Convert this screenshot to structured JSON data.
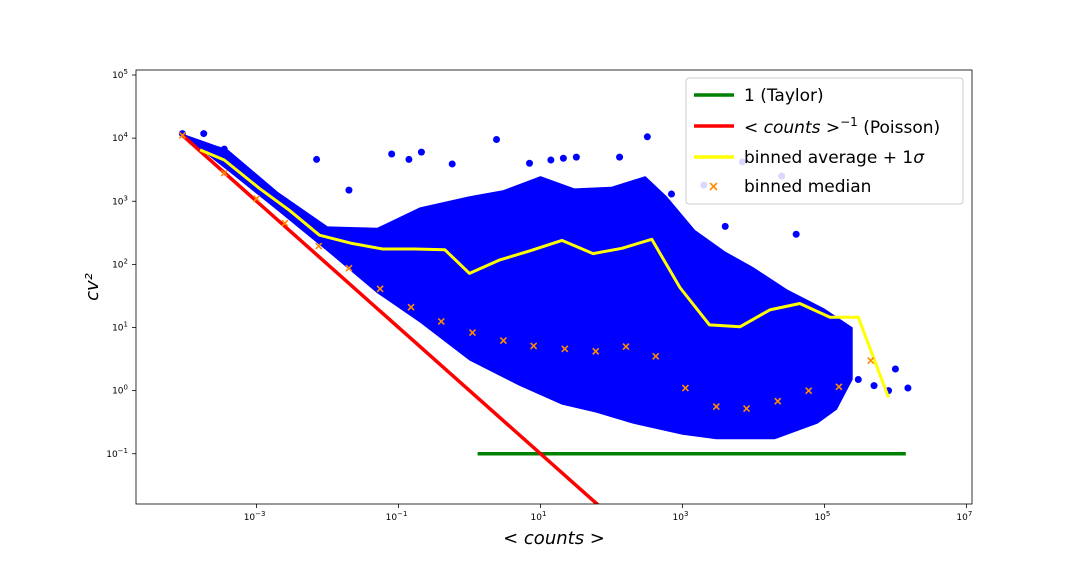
{
  "chart_data": {
    "type": "scatter",
    "title": "",
    "xlabel": "< counts >",
    "ylabel": "cv²",
    "xscale": "log",
    "yscale": "log",
    "xlim": [
      2e-05,
      12000000
    ],
    "ylim": [
      0.016,
      120000
    ],
    "xticks": [
      {
        "value": 0.001,
        "base": "10",
        "exp": "−3"
      },
      {
        "value": 0.1,
        "base": "10",
        "exp": "−1"
      },
      {
        "value": 10,
        "base": "10",
        "exp": "1"
      },
      {
        "value": 1000,
        "base": "10",
        "exp": "3"
      },
      {
        "value": 100000,
        "base": "10",
        "exp": "5"
      },
      {
        "value": 10000000,
        "base": "10",
        "exp": "7"
      }
    ],
    "yticks": [
      {
        "value": 0.1,
        "base": "10",
        "exp": "−1"
      },
      {
        "value": 1,
        "base": "10",
        "exp": "0"
      },
      {
        "value": 10,
        "base": "10",
        "exp": "1"
      },
      {
        "value": 100,
        "base": "10",
        "exp": "2"
      },
      {
        "value": 1000,
        "base": "10",
        "exp": "3"
      },
      {
        "value": 10000,
        "base": "10",
        "exp": "4"
      },
      {
        "value": 100000,
        "base": "10",
        "exp": "5"
      }
    ],
    "grid": false,
    "legend_position": "top-right",
    "colors": {
      "scatter": "#0000ff",
      "taylor": "#008000",
      "poisson": "#ff0000",
      "binned_average": "#ffff00",
      "binned_median": "#ff8c00"
    },
    "legend": [
      {
        "key": "taylor",
        "label": "1 (Taylor)"
      },
      {
        "key": "poisson",
        "label_math": "< counts >",
        "label_sup": "−1",
        "label_suffix": " (Poisson)"
      },
      {
        "key": "binned_average",
        "label": "binned average + 1",
        "label_math": "σ"
      },
      {
        "key": "binned_median",
        "label": "binned median"
      }
    ],
    "series": {
      "taylor": {
        "x": [
          1.3,
          1400000
        ],
        "y": [
          0.1,
          0.1
        ]
      },
      "poisson": {
        "x": [
          9e-05,
          70
        ],
        "y": [
          11100,
          0.0143
        ]
      },
      "binned_average": {
        "x": [
          0.00016,
          0.00035,
          0.0011,
          0.0029,
          0.0077,
          0.022,
          0.06,
          0.17,
          0.45,
          1.0,
          2.7,
          7.3,
          20,
          55,
          140,
          370,
          920,
          2400,
          6500,
          17000,
          45000,
          120000,
          300000,
          800000
        ],
        "y": [
          6500,
          4500,
          1600,
          720,
          290,
          215,
          175,
          175,
          170,
          72,
          118,
          165,
          240,
          148,
          180,
          250,
          43,
          11,
          10.3,
          19,
          24,
          14.5,
          14.5,
          0.78
        ]
      },
      "binned_median": {
        "x": [
          9e-05,
          0.00035,
          0.001,
          0.0025,
          0.0075,
          0.02,
          0.055,
          0.15,
          0.4,
          1.1,
          3,
          8,
          22,
          60,
          160,
          420,
          1100,
          3000,
          8000,
          22000,
          60000,
          160000,
          450000
        ],
        "y": [
          11100,
          2800,
          1100,
          450,
          195,
          87,
          41,
          21,
          12.5,
          8.3,
          6.2,
          5.1,
          4.6,
          4.2,
          5,
          3.5,
          1.1,
          0.56,
          0.52,
          0.68,
          1.0,
          1.15,
          3.0
        ]
      },
      "scatter_points": {
        "x": [
          9e-05,
          0.00018,
          0.00029,
          0.00035,
          0.00055,
          0.0008,
          0.001,
          0.0015,
          0.0022,
          0.003,
          0.0045,
          0.006,
          0.009,
          0.012,
          0.018,
          0.03,
          0.05,
          0.08,
          0.15,
          0.3,
          0.5,
          1.0,
          1.5,
          2,
          3,
          5,
          8,
          12,
          20,
          30,
          50,
          80,
          120,
          200,
          300,
          500,
          800,
          1200,
          2000,
          3000,
          5000,
          8000,
          12000,
          20000,
          30000,
          50000,
          80000,
          120000,
          200000,
          300000,
          500000,
          800000,
          1000000,
          1500000,
          0.007,
          0.08,
          0.14,
          0.21,
          0.57,
          2.4,
          7,
          14,
          21,
          32,
          130,
          320,
          700,
          2000,
          7000,
          25000,
          0.02,
          0.4,
          4,
          40,
          400,
          4000,
          40000
        ],
        "y": [
          11800,
          11800,
          6500,
          6700,
          3500,
          2200,
          1700,
          1200,
          800,
          600,
          450,
          350,
          300,
          220,
          180,
          150,
          130,
          110,
          90,
          70,
          60,
          50,
          45,
          40,
          35,
          30,
          25,
          22,
          20,
          18,
          16,
          15,
          14,
          13,
          12,
          11,
          10,
          9,
          8,
          7,
          6,
          5,
          4.5,
          4,
          3.5,
          3,
          2.5,
          2,
          1.8,
          1.5,
          1.2,
          1.0,
          2.2,
          1.1,
          4600,
          5600,
          4600,
          6000,
          3900,
          9500,
          4000,
          4500,
          4800,
          5000,
          5000,
          10500,
          1300,
          1800,
          4200,
          2500,
          1500,
          800,
          1200,
          700,
          500,
          400,
          300
        ]
      }
    }
  }
}
